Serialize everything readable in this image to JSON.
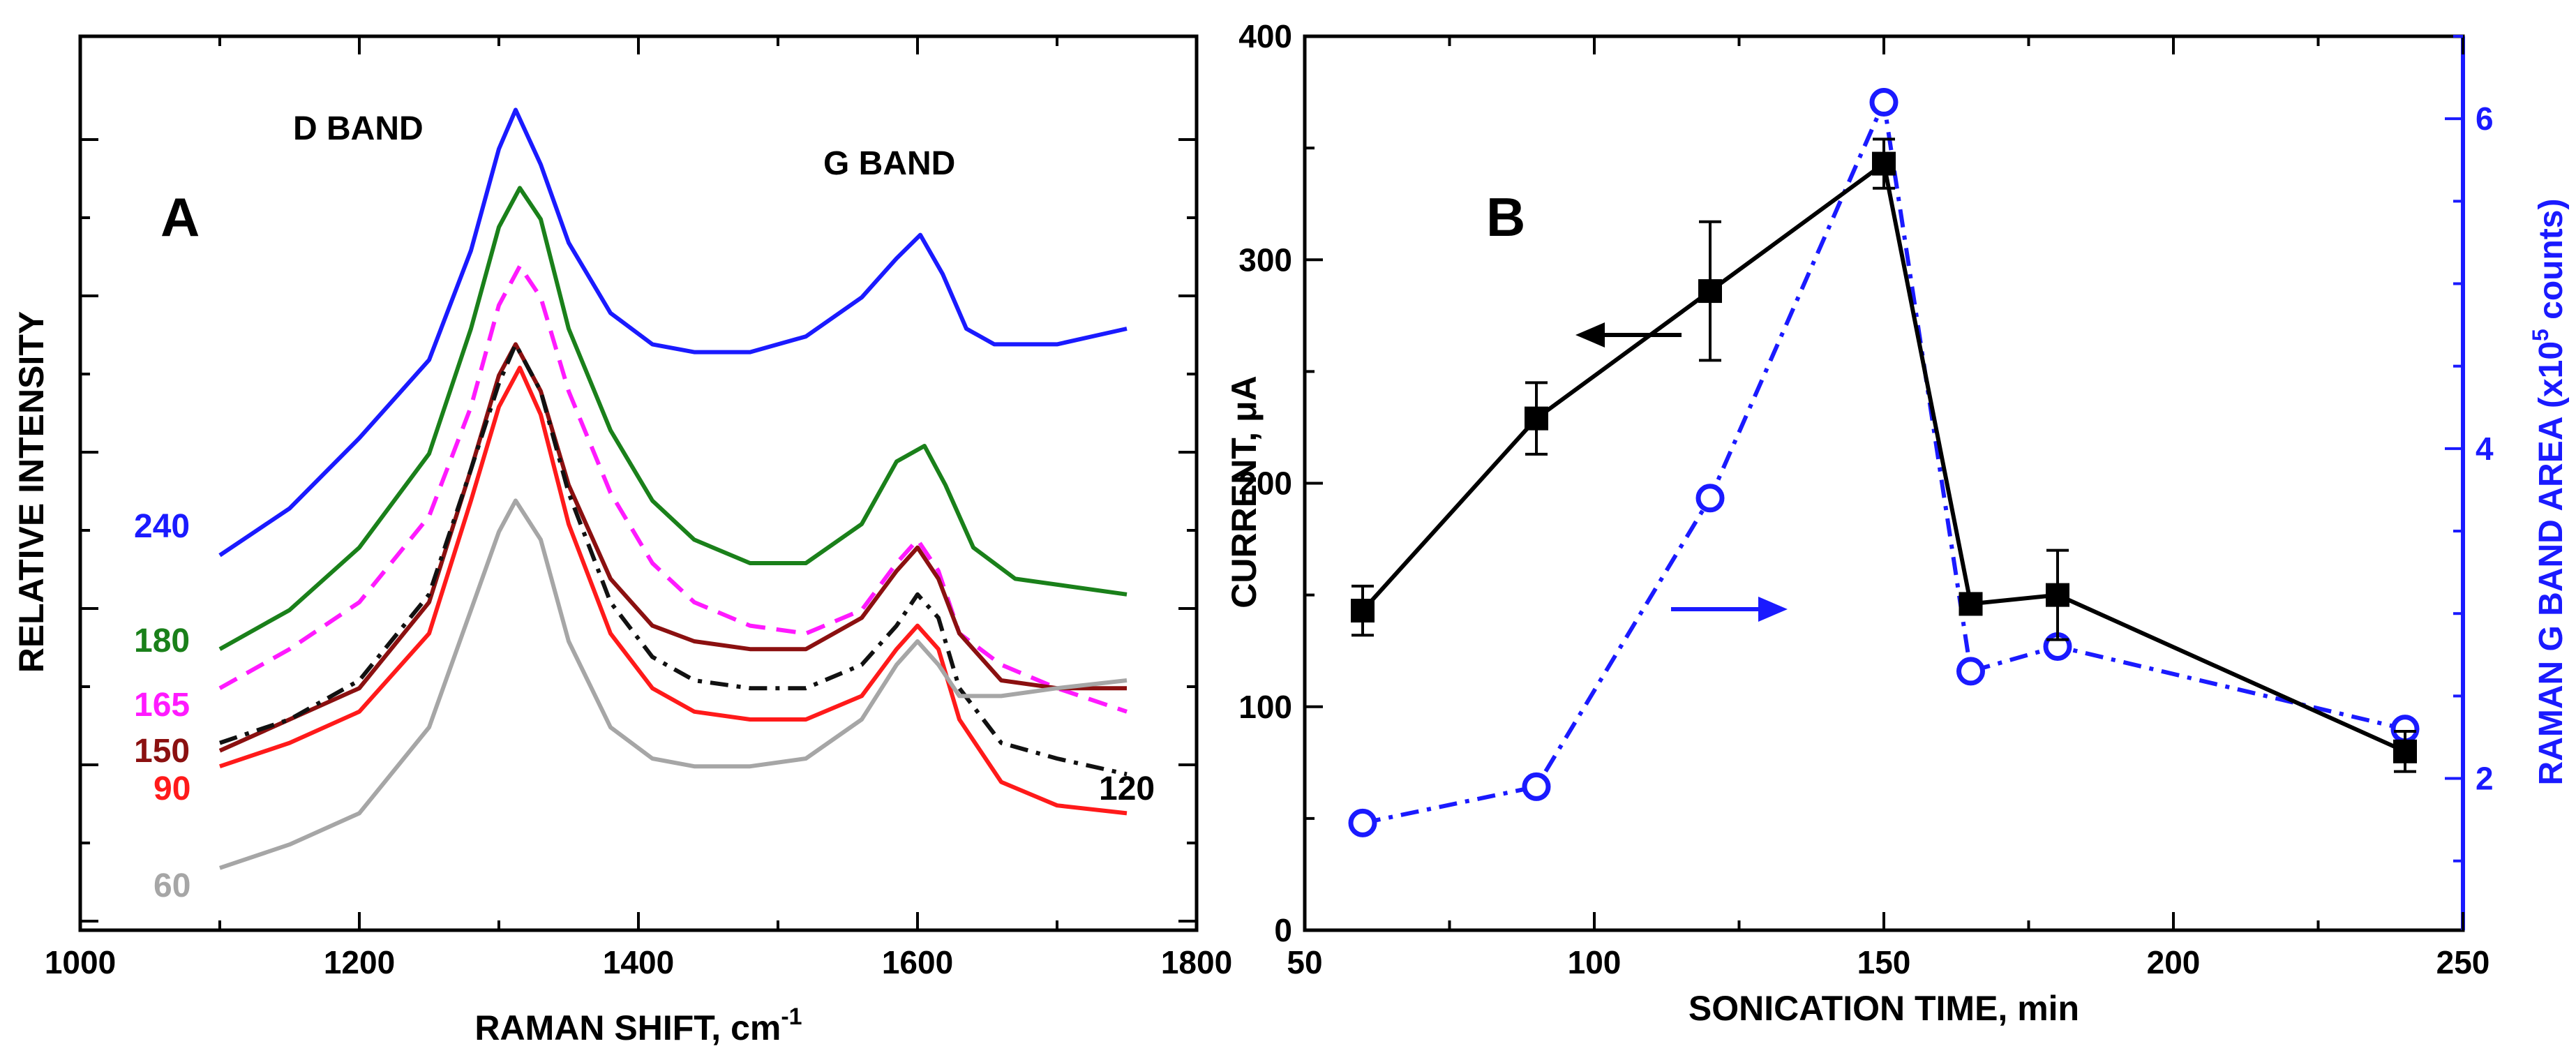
{
  "chart_data": [
    {
      "panel": "A",
      "type": "line",
      "title": "",
      "xlabel": "RAMAN SHIFT, cm",
      "xlabel_superscript": "-1",
      "ylabel": "RELATIVE INTENSITY",
      "xlim": [
        1000,
        1800
      ],
      "ylim": [
        0,
        100
      ],
      "x_ticks": [
        "1000",
        "1200",
        "1400",
        "1600",
        "1800"
      ],
      "x_tick_values": [
        1000,
        1200,
        1400,
        1600,
        1800
      ],
      "annotations": {
        "panel_label": "A",
        "d_band": "D BAND",
        "g_band": "G BAND"
      },
      "series": [
        {
          "name": "240",
          "color": "#1a1aff",
          "dash": "solid",
          "points": [
            [
              1100,
              41
            ],
            [
              1150,
              47
            ],
            [
              1200,
              56
            ],
            [
              1250,
              66
            ],
            [
              1280,
              80
            ],
            [
              1300,
              93
            ],
            [
              1312,
              98
            ],
            [
              1330,
              91
            ],
            [
              1350,
              81
            ],
            [
              1380,
              72
            ],
            [
              1410,
              68
            ],
            [
              1440,
              67
            ],
            [
              1480,
              67
            ],
            [
              1520,
              69
            ],
            [
              1560,
              74
            ],
            [
              1585,
              79
            ],
            [
              1602,
              82
            ],
            [
              1618,
              77
            ],
            [
              1635,
              70
            ],
            [
              1655,
              68
            ],
            [
              1700,
              68
            ],
            [
              1750,
              70
            ]
          ]
        },
        {
          "name": "180",
          "color": "#1a801a",
          "dash": "solid",
          "points": [
            [
              1100,
              29
            ],
            [
              1150,
              34
            ],
            [
              1200,
              42
            ],
            [
              1250,
              54
            ],
            [
              1280,
              70
            ],
            [
              1300,
              83
            ],
            [
              1315,
              88
            ],
            [
              1330,
              84
            ],
            [
              1350,
              70
            ],
            [
              1380,
              57
            ],
            [
              1410,
              48
            ],
            [
              1440,
              43
            ],
            [
              1480,
              40
            ],
            [
              1520,
              40
            ],
            [
              1560,
              45
            ],
            [
              1585,
              53
            ],
            [
              1605,
              55
            ],
            [
              1620,
              50
            ],
            [
              1640,
              42
            ],
            [
              1670,
              38
            ],
            [
              1710,
              37
            ],
            [
              1750,
              36
            ]
          ]
        },
        {
          "name": "165",
          "color": "#ff1aff",
          "dash": "dashed",
          "points": [
            [
              1100,
              24
            ],
            [
              1150,
              29
            ],
            [
              1200,
              35
            ],
            [
              1250,
              46
            ],
            [
              1280,
              60
            ],
            [
              1300,
              73
            ],
            [
              1315,
              78
            ],
            [
              1330,
              74
            ],
            [
              1350,
              62
            ],
            [
              1380,
              49
            ],
            [
              1410,
              40
            ],
            [
              1440,
              35
            ],
            [
              1480,
              32
            ],
            [
              1520,
              31
            ],
            [
              1560,
              34
            ],
            [
              1585,
              40
            ],
            [
              1600,
              43
            ],
            [
              1615,
              39
            ],
            [
              1630,
              31
            ],
            [
              1660,
              27
            ],
            [
              1700,
              24
            ],
            [
              1750,
              21
            ]
          ]
        },
        {
          "name": "150",
          "color": "#8b1010",
          "dash": "solid",
          "points": [
            [
              1100,
              16
            ],
            [
              1150,
              20
            ],
            [
              1200,
              24
            ],
            [
              1250,
              35
            ],
            [
              1280,
              52
            ],
            [
              1300,
              64
            ],
            [
              1312,
              68
            ],
            [
              1330,
              62
            ],
            [
              1350,
              50
            ],
            [
              1380,
              38
            ],
            [
              1410,
              32
            ],
            [
              1440,
              30
            ],
            [
              1480,
              29
            ],
            [
              1520,
              29
            ],
            [
              1560,
              33
            ],
            [
              1585,
              39
            ],
            [
              1600,
              42
            ],
            [
              1615,
              38
            ],
            [
              1630,
              31
            ],
            [
              1660,
              25
            ],
            [
              1700,
              24
            ],
            [
              1750,
              24
            ]
          ]
        },
        {
          "name": "120",
          "color": "#111111",
          "dash": "dashdot",
          "points": [
            [
              1100,
              17
            ],
            [
              1150,
              20
            ],
            [
              1200,
              25
            ],
            [
              1250,
              36
            ],
            [
              1280,
              52
            ],
            [
              1300,
              63
            ],
            [
              1312,
              68
            ],
            [
              1330,
              62
            ],
            [
              1350,
              49
            ],
            [
              1380,
              35
            ],
            [
              1410,
              28
            ],
            [
              1440,
              25
            ],
            [
              1480,
              24
            ],
            [
              1520,
              24
            ],
            [
              1560,
              27
            ],
            [
              1585,
              32
            ],
            [
              1600,
              36
            ],
            [
              1615,
              33
            ],
            [
              1630,
              24
            ],
            [
              1660,
              17
            ],
            [
              1700,
              15
            ],
            [
              1750,
              13
            ]
          ]
        },
        {
          "name": "90",
          "color": "#ff1a1a",
          "dash": "solid",
          "points": [
            [
              1100,
              14
            ],
            [
              1150,
              17
            ],
            [
              1200,
              21
            ],
            [
              1250,
              31
            ],
            [
              1280,
              48
            ],
            [
              1300,
              60
            ],
            [
              1315,
              65
            ],
            [
              1330,
              59
            ],
            [
              1350,
              45
            ],
            [
              1380,
              31
            ],
            [
              1410,
              24
            ],
            [
              1440,
              21
            ],
            [
              1480,
              20
            ],
            [
              1520,
              20
            ],
            [
              1560,
              23
            ],
            [
              1585,
              29
            ],
            [
              1600,
              32
            ],
            [
              1615,
              29
            ],
            [
              1630,
              20
            ],
            [
              1660,
              12
            ],
            [
              1700,
              9
            ],
            [
              1750,
              8
            ]
          ]
        },
        {
          "name": "60",
          "color": "#a6a6a6",
          "dash": "solid",
          "points": [
            [
              1100,
              1
            ],
            [
              1150,
              4
            ],
            [
              1200,
              8
            ],
            [
              1250,
              19
            ],
            [
              1280,
              34
            ],
            [
              1300,
              44
            ],
            [
              1312,
              48
            ],
            [
              1330,
              43
            ],
            [
              1350,
              30
            ],
            [
              1380,
              19
            ],
            [
              1410,
              15
            ],
            [
              1440,
              14
            ],
            [
              1480,
              14
            ],
            [
              1520,
              15
            ],
            [
              1560,
              20
            ],
            [
              1585,
              27
            ],
            [
              1600,
              30
            ],
            [
              1615,
              27
            ],
            [
              1630,
              23
            ],
            [
              1660,
              23
            ],
            [
              1700,
              24
            ],
            [
              1750,
              25
            ]
          ]
        }
      ]
    },
    {
      "panel": "B",
      "type": "line",
      "title": "",
      "xlabel": "SONICATION TIME, min",
      "ylabel": "CURRENT, μA",
      "y2label_prefix": "RAMAN G BAND AREA (x10",
      "y2label_superscript": "5",
      "y2label_suffix": " counts)",
      "xlim": [
        50,
        250
      ],
      "ylim": [
        0,
        400
      ],
      "y2lim": [
        1.08,
        6.5
      ],
      "x_ticks": [
        "50",
        "100",
        "150",
        "200",
        "250"
      ],
      "x_tick_values": [
        50,
        100,
        150,
        200,
        250
      ],
      "y_ticks": [
        "0",
        "100",
        "200",
        "300",
        "400"
      ],
      "y_tick_values": [
        0,
        100,
        200,
        300,
        400
      ],
      "y2_ticks": [
        "2",
        "4",
        "6"
      ],
      "y2_tick_values": [
        2,
        4,
        6
      ],
      "annotations": {
        "panel_label": "B"
      },
      "series": [
        {
          "name": "Current",
          "axis": "left",
          "color": "#000000",
          "marker": "filled-square",
          "x": [
            60,
            90,
            120,
            150,
            165,
            180,
            240
          ],
          "y": [
            143,
            229,
            286,
            343,
            146,
            150,
            80
          ],
          "yerr": [
            11,
            16,
            31,
            11,
            0,
            20,
            9
          ]
        },
        {
          "name": "Raman G band area",
          "axis": "right",
          "color": "#1a1aff",
          "marker": "open-circle",
          "dash": "dashdot",
          "x": [
            60,
            90,
            120,
            150,
            165,
            180,
            240
          ],
          "y": [
            1.73,
            1.95,
            3.7,
            6.1,
            2.65,
            2.8,
            2.3
          ]
        }
      ]
    }
  ]
}
